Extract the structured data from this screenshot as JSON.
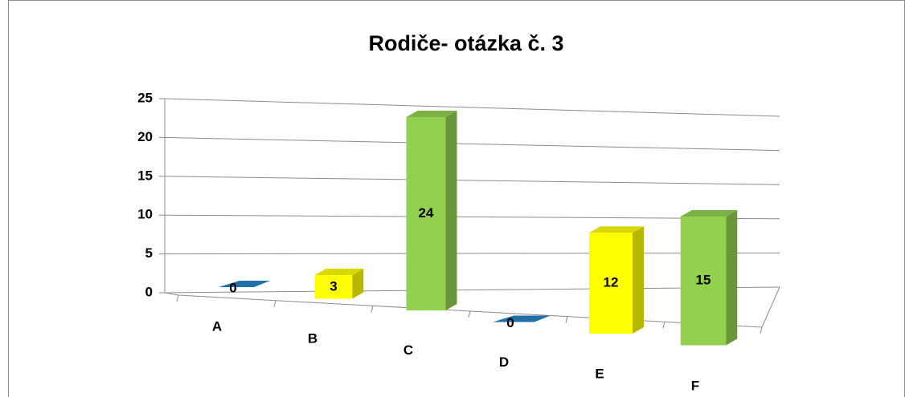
{
  "chart_data": {
    "type": "bar3d",
    "title": "Rodiče- otázka č. 3",
    "categories": [
      "A",
      "B",
      "C",
      "D",
      "E",
      "F"
    ],
    "values": [
      0,
      3,
      24,
      0,
      12,
      15
    ],
    "colors": [
      "#1f6fa8",
      "#ffff00",
      "#92d050",
      "#1f6fa8",
      "#ffff00",
      "#92d050"
    ],
    "ylim": [
      0,
      25
    ],
    "yticks": [
      0,
      5,
      10,
      15,
      20,
      25
    ],
    "grid": true
  }
}
